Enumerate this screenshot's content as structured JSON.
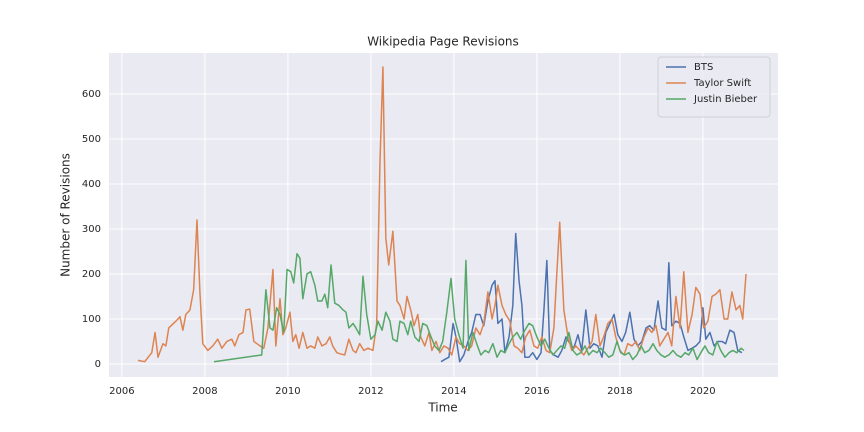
{
  "chart_data": {
    "type": "line",
    "title": "Wikipedia Page Revisions",
    "x_label": "Time",
    "y_label": "Number of Revisions",
    "xlim": [
      2005.69,
      2021.81
    ],
    "ylim": [
      -29,
      691
    ],
    "xticks": [
      2006,
      2008,
      2010,
      2012,
      2014,
      2016,
      2018,
      2020
    ],
    "yticks": [
      0,
      100,
      200,
      300,
      400,
      500,
      600
    ],
    "grid": true,
    "legend": "upper right",
    "series": [
      {
        "name": "BTS",
        "color": "#4c72b0",
        "x": [
          2013.69,
          2013.78,
          2013.88,
          2013.98,
          2014.05,
          2014.14,
          2014.24,
          2014.34,
          2014.43,
          2014.53,
          2014.63,
          2014.72,
          2014.82,
          2014.92,
          2014.99,
          2015.06,
          2015.16,
          2015.23,
          2015.33,
          2015.42,
          2015.49,
          2015.57,
          2015.64,
          2015.71,
          2015.81,
          2015.9,
          2016.0,
          2016.1,
          2016.17,
          2016.24,
          2016.31,
          2016.41,
          2016.51,
          2016.6,
          2016.7,
          2016.8,
          2016.89,
          2016.99,
          2017.08,
          2017.18,
          2017.28,
          2017.37,
          2017.47,
          2017.57,
          2017.66,
          2017.76,
          2017.86,
          2017.95,
          2018.05,
          2018.14,
          2018.24,
          2018.34,
          2018.43,
          2018.53,
          2018.63,
          2018.72,
          2018.82,
          2018.92,
          2019.01,
          2019.11,
          2019.18,
          2019.25,
          2019.35,
          2019.45,
          2019.54,
          2019.64,
          2019.74,
          2019.83,
          2019.93,
          2020.0,
          2020.07,
          2020.17,
          2020.27,
          2020.36,
          2020.46,
          2020.55,
          2020.65,
          2020.75,
          2020.84,
          2020.94
        ],
        "values": [
          5,
          10,
          15,
          90,
          60,
          5,
          20,
          50,
          70,
          110,
          110,
          85,
          140,
          175,
          185,
          90,
          100,
          25,
          60,
          130,
          290,
          185,
          130,
          15,
          15,
          25,
          10,
          25,
          120,
          230,
          30,
          20,
          15,
          30,
          60,
          45,
          35,
          65,
          30,
          120,
          35,
          45,
          40,
          15,
          70,
          90,
          110,
          65,
          50,
          70,
          115,
          55,
          40,
          50,
          80,
          85,
          75,
          140,
          80,
          75,
          225,
          85,
          95,
          90,
          60,
          30,
          35,
          40,
          50,
          125,
          55,
          70,
          40,
          50,
          50,
          45,
          75,
          70,
          30,
          25
        ]
      },
      {
        "name": "Taylor Swift",
        "color": "#dd8452",
        "x": [
          2006.39,
          2006.55,
          2006.72,
          2006.8,
          2006.87,
          2006.99,
          2007.06,
          2007.13,
          2007.3,
          2007.4,
          2007.47,
          2007.54,
          2007.64,
          2007.73,
          2007.81,
          2007.88,
          2007.95,
          2008.07,
          2008.19,
          2008.31,
          2008.41,
          2008.53,
          2008.65,
          2008.72,
          2008.82,
          2008.92,
          2008.99,
          2009.08,
          2009.18,
          2009.33,
          2009.42,
          2009.52,
          2009.64,
          2009.71,
          2009.81,
          2009.88,
          2009.95,
          2010.05,
          2010.12,
          2010.19,
          2010.27,
          2010.36,
          2010.46,
          2010.55,
          2010.65,
          2010.72,
          2010.82,
          2010.92,
          2011.01,
          2011.08,
          2011.18,
          2011.28,
          2011.37,
          2011.47,
          2011.57,
          2011.64,
          2011.73,
          2011.83,
          2011.93,
          2012.05,
          2012.14,
          2012.22,
          2012.29,
          2012.36,
          2012.43,
          2012.53,
          2012.63,
          2012.7,
          2012.8,
          2012.87,
          2012.96,
          2013.04,
          2013.13,
          2013.2,
          2013.3,
          2013.4,
          2013.47,
          2013.57,
          2013.66,
          2013.76,
          2013.86,
          2013.95,
          2014.05,
          2014.14,
          2014.24,
          2014.34,
          2014.43,
          2014.53,
          2014.63,
          2014.72,
          2014.82,
          2014.92,
          2014.99,
          2015.06,
          2015.16,
          2015.25,
          2015.35,
          2015.45,
          2015.54,
          2015.64,
          2015.73,
          2015.83,
          2015.93,
          2016.02,
          2016.12,
          2016.22,
          2016.31,
          2016.41,
          2016.48,
          2016.55,
          2016.65,
          2016.75,
          2016.84,
          2016.94,
          2017.04,
          2017.13,
          2017.23,
          2017.33,
          2017.42,
          2017.52,
          2017.61,
          2017.71,
          2017.81,
          2017.9,
          2018.0,
          2018.1,
          2018.19,
          2018.29,
          2018.39,
          2018.48,
          2018.58,
          2018.68,
          2018.77,
          2018.87,
          2018.96,
          2019.06,
          2019.16,
          2019.25,
          2019.35,
          2019.45,
          2019.54,
          2019.64,
          2019.74,
          2019.83,
          2019.93,
          2020.02,
          2020.12,
          2020.22,
          2020.31,
          2020.41,
          2020.51,
          2020.6,
          2020.7,
          2020.8,
          2020.89,
          2020.96,
          2021.04
        ],
        "values": [
          8,
          5,
          25,
          70,
          15,
          45,
          40,
          80,
          95,
          105,
          75,
          110,
          120,
          165,
          320,
          160,
          45,
          30,
          40,
          55,
          35,
          50,
          55,
          40,
          65,
          70,
          120,
          122,
          50,
          40,
          35,
          80,
          210,
          40,
          145,
          65,
          80,
          115,
          50,
          65,
          35,
          70,
          35,
          40,
          35,
          60,
          40,
          45,
          60,
          40,
          25,
          22,
          20,
          55,
          30,
          25,
          45,
          30,
          35,
          30,
          90,
          450,
          660,
          280,
          220,
          295,
          140,
          130,
          100,
          150,
          120,
          85,
          110,
          60,
          40,
          70,
          30,
          50,
          25,
          40,
          35,
          20,
          60,
          45,
          40,
          30,
          40,
          80,
          65,
          90,
          160,
          100,
          130,
          175,
          130,
          110,
          95,
          40,
          35,
          25,
          60,
          75,
          40,
          35,
          60,
          30,
          25,
          80,
          200,
          315,
          120,
          60,
          30,
          40,
          30,
          20,
          35,
          50,
          110,
          40,
          60,
          90,
          100,
          60,
          30,
          20,
          45,
          40,
          50,
          30,
          60,
          80,
          70,
          85,
          40,
          55,
          70,
          40,
          150,
          80,
          205,
          70,
          110,
          170,
          155,
          80,
          95,
          150,
          155,
          165,
          100,
          100,
          160,
          120,
          130,
          100,
          200
        ]
      },
      {
        "name": "Justin Bieber",
        "color": "#55a868",
        "x": [
          2008.22,
          2009.37,
          2009.47,
          2009.57,
          2009.64,
          2009.73,
          2009.81,
          2009.9,
          2009.98,
          2010.07,
          2010.14,
          2010.22,
          2010.29,
          2010.36,
          2010.46,
          2010.55,
          2010.65,
          2010.72,
          2010.82,
          2010.89,
          2010.96,
          2011.04,
          2011.13,
          2011.23,
          2011.33,
          2011.4,
          2011.47,
          2011.57,
          2011.64,
          2011.73,
          2011.81,
          2011.9,
          2012.0,
          2012.1,
          2012.17,
          2012.27,
          2012.36,
          2012.46,
          2012.53,
          2012.63,
          2012.7,
          2012.8,
          2012.89,
          2012.96,
          2013.06,
          2013.16,
          2013.25,
          2013.35,
          2013.45,
          2013.54,
          2013.64,
          2013.73,
          2013.83,
          2013.93,
          2014.02,
          2014.12,
          2014.22,
          2014.29,
          2014.36,
          2014.46,
          2014.55,
          2014.65,
          2014.75,
          2014.84,
          2014.94,
          2015.04,
          2015.13,
          2015.23,
          2015.33,
          2015.42,
          2015.52,
          2015.61,
          2015.71,
          2015.81,
          2015.9,
          2016.0,
          2016.1,
          2016.19,
          2016.29,
          2016.39,
          2016.48,
          2016.58,
          2016.67,
          2016.77,
          2016.87,
          2016.96,
          2017.06,
          2017.16,
          2017.25,
          2017.35,
          2017.45,
          2017.54,
          2017.64,
          2017.73,
          2017.83,
          2017.93,
          2018.02,
          2018.12,
          2018.22,
          2018.31,
          2018.41,
          2018.51,
          2018.6,
          2018.7,
          2018.8,
          2018.89,
          2018.99,
          2019.08,
          2019.18,
          2019.28,
          2019.37,
          2019.47,
          2019.57,
          2019.66,
          2019.76,
          2019.86,
          2019.95,
          2020.05,
          2020.14,
          2020.24,
          2020.34,
          2020.43,
          2020.53,
          2020.63,
          2020.72,
          2020.82,
          2020.92,
          2020.99
        ],
        "values": [
          5,
          20,
          165,
          80,
          75,
          125,
          110,
          70,
          210,
          205,
          180,
          245,
          235,
          145,
          200,
          205,
          175,
          140,
          140,
          155,
          125,
          220,
          135,
          130,
          120,
          115,
          80,
          90,
          80,
          65,
          195,
          110,
          55,
          65,
          95,
          75,
          115,
          95,
          55,
          50,
          95,
          90,
          65,
          95,
          60,
          50,
          90,
          85,
          60,
          40,
          30,
          50,
          115,
          190,
          100,
          65,
          35,
          230,
          30,
          70,
          45,
          20,
          30,
          25,
          45,
          15,
          30,
          25,
          45,
          60,
          70,
          55,
          75,
          90,
          85,
          60,
          40,
          55,
          35,
          20,
          30,
          40,
          35,
          70,
          30,
          20,
          25,
          40,
          20,
          30,
          25,
          35,
          25,
          15,
          20,
          50,
          25,
          20,
          25,
          10,
          20,
          40,
          25,
          30,
          45,
          30,
          20,
          15,
          20,
          30,
          20,
          15,
          25,
          20,
          35,
          10,
          25,
          40,
          25,
          20,
          50,
          30,
          15,
          25,
          30,
          25,
          35,
          30
        ]
      }
    ]
  }
}
